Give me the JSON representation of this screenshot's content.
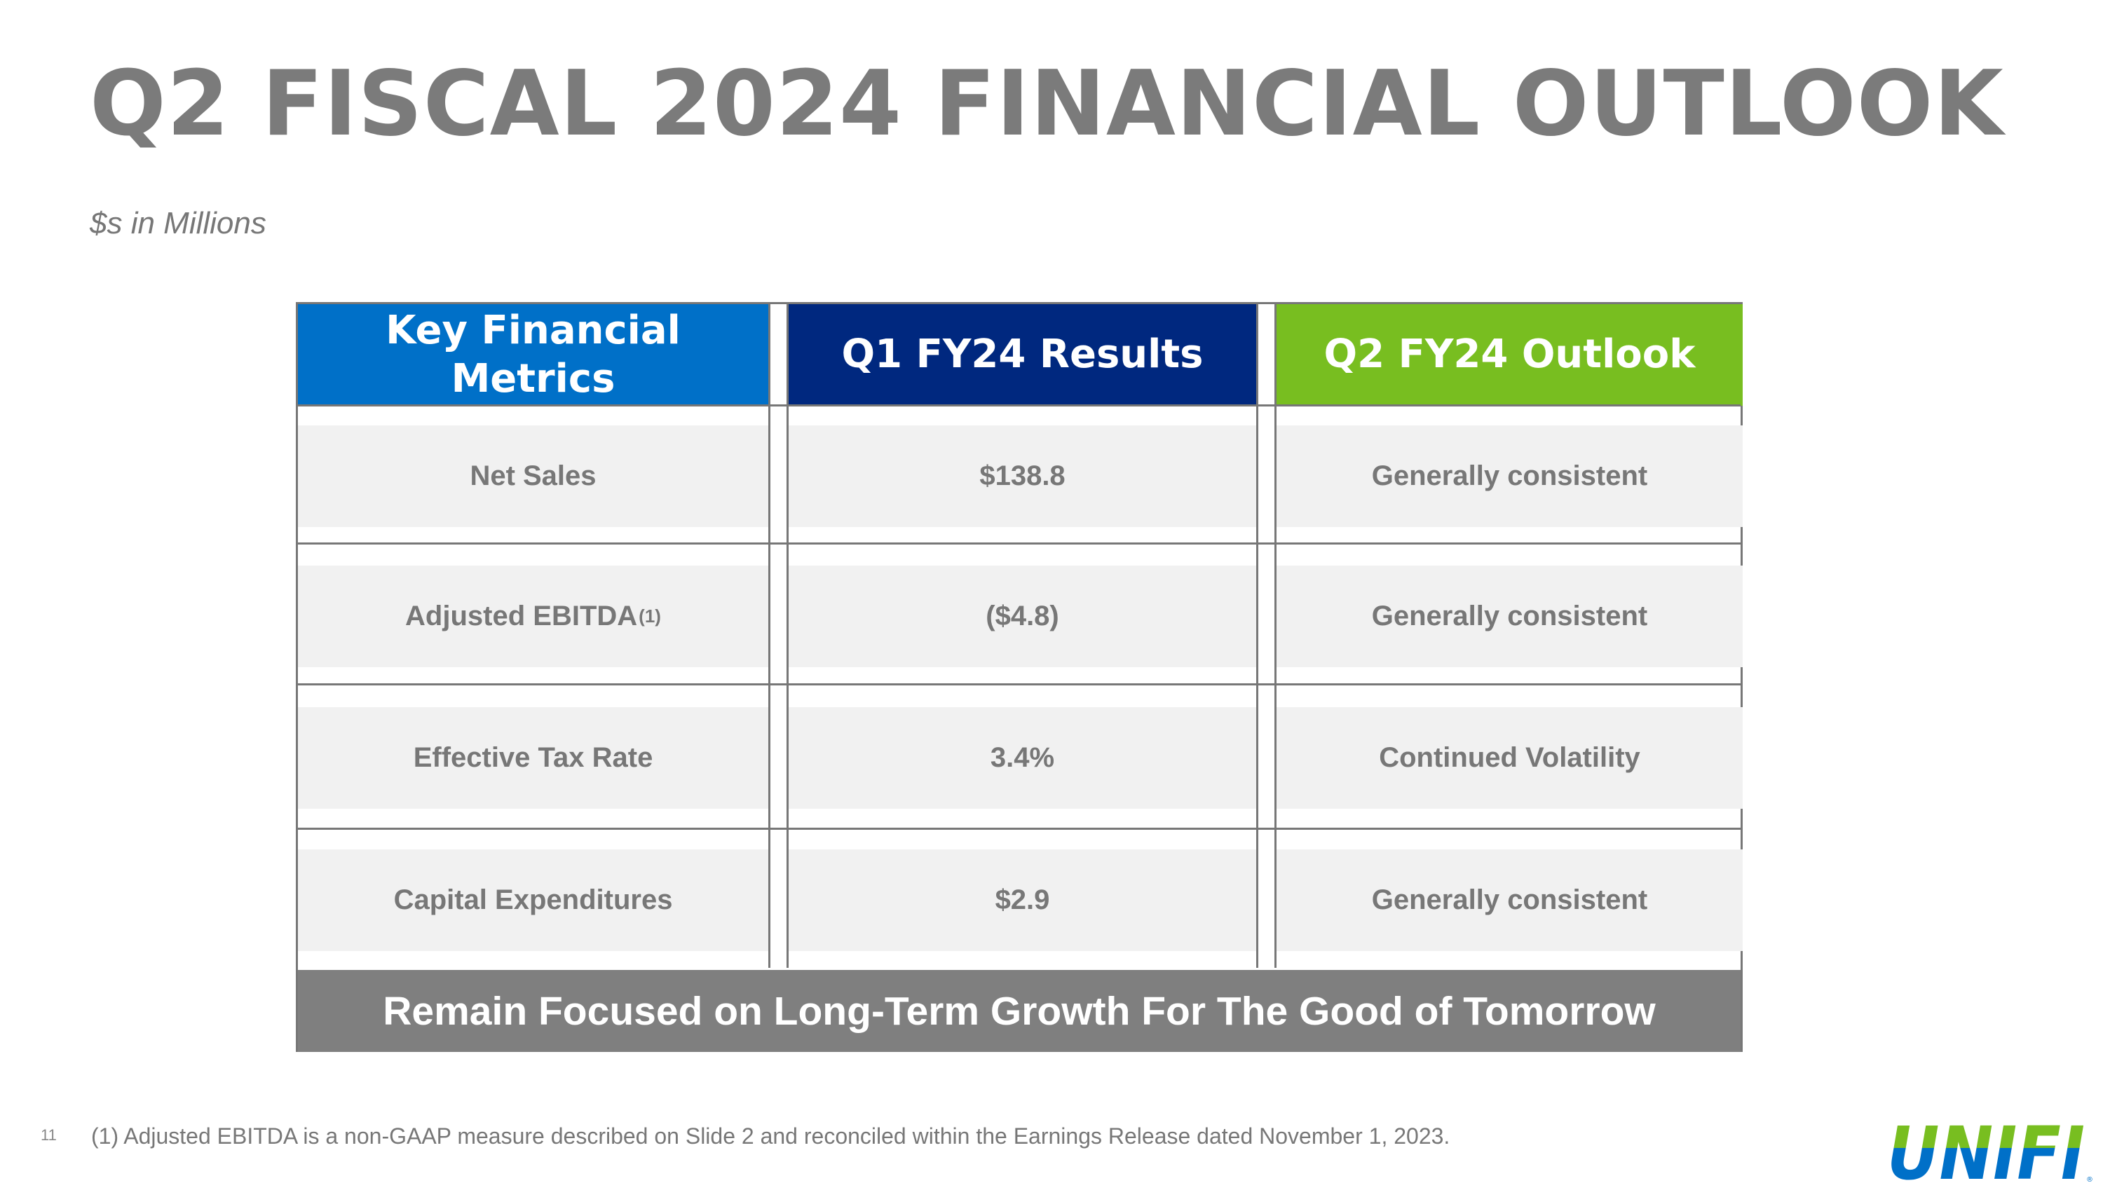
{
  "slide": {
    "title": "Q2 FISCAL 2024 FINANCIAL OUTLOOK",
    "subtitle": "$s in Millions",
    "page_number": "11",
    "footnote": "(1) Adjusted EBITDA is a non-GAAP measure described on Slide 2 and reconciled within the Earnings Release dated November 1, 2023."
  },
  "table": {
    "headers": [
      {
        "label": "Key Financial Metrics",
        "color": "#0070c8"
      },
      {
        "label": "Q1 FY24 Results",
        "color": "#00287f"
      },
      {
        "label": "Q2 FY24 Outlook",
        "color": "#78be20"
      }
    ],
    "rows": [
      {
        "metric": "Net Sales",
        "footnote_marker": "",
        "q1_result": "$138.8",
        "q2_outlook": "Generally consistent"
      },
      {
        "metric": "Adjusted EBITDA",
        "footnote_marker": "(1)",
        "q1_result": "($4.8)",
        "q2_outlook": "Generally consistent"
      },
      {
        "metric": "Effective Tax Rate",
        "footnote_marker": "",
        "q1_result": "3.4%",
        "q2_outlook": "Continued Volatility"
      },
      {
        "metric": "Capital Expenditures",
        "footnote_marker": "",
        "q1_result": "$2.9",
        "q2_outlook": "Generally consistent"
      }
    ],
    "banner": "Remain Focused on Long-Term Growth For The Good of Tomorrow"
  },
  "logo": {
    "text": "UNIFI",
    "mark": "®",
    "colors": {
      "green": "#78be20",
      "blue": "#0070c8"
    }
  }
}
